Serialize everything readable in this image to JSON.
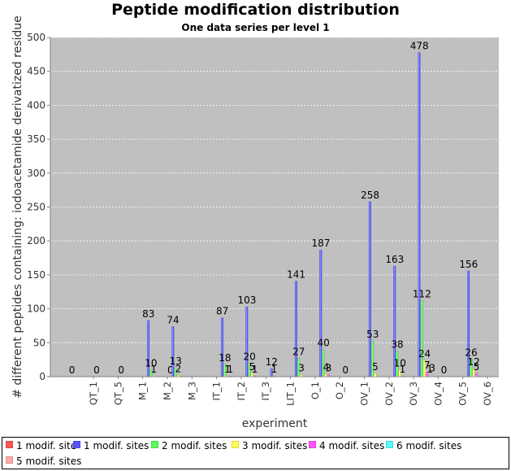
{
  "chart_data": {
    "type": "bar",
    "title": "Peptide modification distribution",
    "subtitle": "One data series per level 1",
    "xlabel": "experiment",
    "ylabel": "# different peptides containing: iodoacetamide derivatized residue",
    "ylim": [
      0,
      500
    ],
    "yticks": [
      0,
      50,
      100,
      150,
      200,
      250,
      300,
      350,
      400,
      450,
      500
    ],
    "grid": true,
    "legend_position": "bottom",
    "categories": [
      "QT_1",
      "QT_5",
      "M_1",
      "M_2",
      "M_3",
      "IT_1",
      "IT_2",
      "IT_3",
      "LIT_1",
      "O_1",
      "O_2",
      "OV_1",
      "OV_2",
      "OV_3",
      "OV_4",
      "OV_5",
      "OV_6"
    ],
    "series": [
      {
        "name": "1 modif. site",
        "color": "#ff5555",
        "values": [
          0,
          0,
          0,
          null,
          0,
          null,
          null,
          null,
          null,
          null,
          null,
          null,
          null,
          null,
          null,
          null,
          null
        ]
      },
      {
        "name": "1 modif. sites",
        "color": "#5555ff",
        "values": [
          null,
          null,
          null,
          83,
          74,
          null,
          87,
          103,
          12,
          141,
          187,
          0,
          258,
          163,
          478,
          0,
          156
        ]
      },
      {
        "name": "2 modif. sites",
        "color": "#55ff55",
        "values": [
          null,
          null,
          null,
          10,
          13,
          null,
          18,
          20,
          1,
          27,
          40,
          null,
          53,
          38,
          112,
          null,
          26
        ]
      },
      {
        "name": "3 modif. sites",
        "color": "#ffff55",
        "values": [
          null,
          null,
          null,
          1,
          2,
          null,
          1,
          5,
          null,
          3,
          4,
          null,
          5,
          10,
          24,
          null,
          12
        ]
      },
      {
        "name": "4 modif. sites",
        "color": "#ff55ff",
        "values": [
          null,
          null,
          null,
          null,
          null,
          null,
          1,
          1,
          null,
          null,
          3,
          null,
          null,
          1,
          7,
          null,
          5
        ]
      },
      {
        "name": "6 modif. sites",
        "color": "#55ffff",
        "values": [
          null,
          null,
          null,
          null,
          null,
          null,
          null,
          null,
          null,
          null,
          null,
          null,
          null,
          null,
          1,
          null,
          null
        ]
      },
      {
        "name": "5 modif. sites",
        "color": "#ffaaaa",
        "values": [
          null,
          null,
          null,
          null,
          null,
          null,
          null,
          null,
          null,
          null,
          null,
          null,
          null,
          null,
          3,
          null,
          null
        ]
      }
    ]
  }
}
